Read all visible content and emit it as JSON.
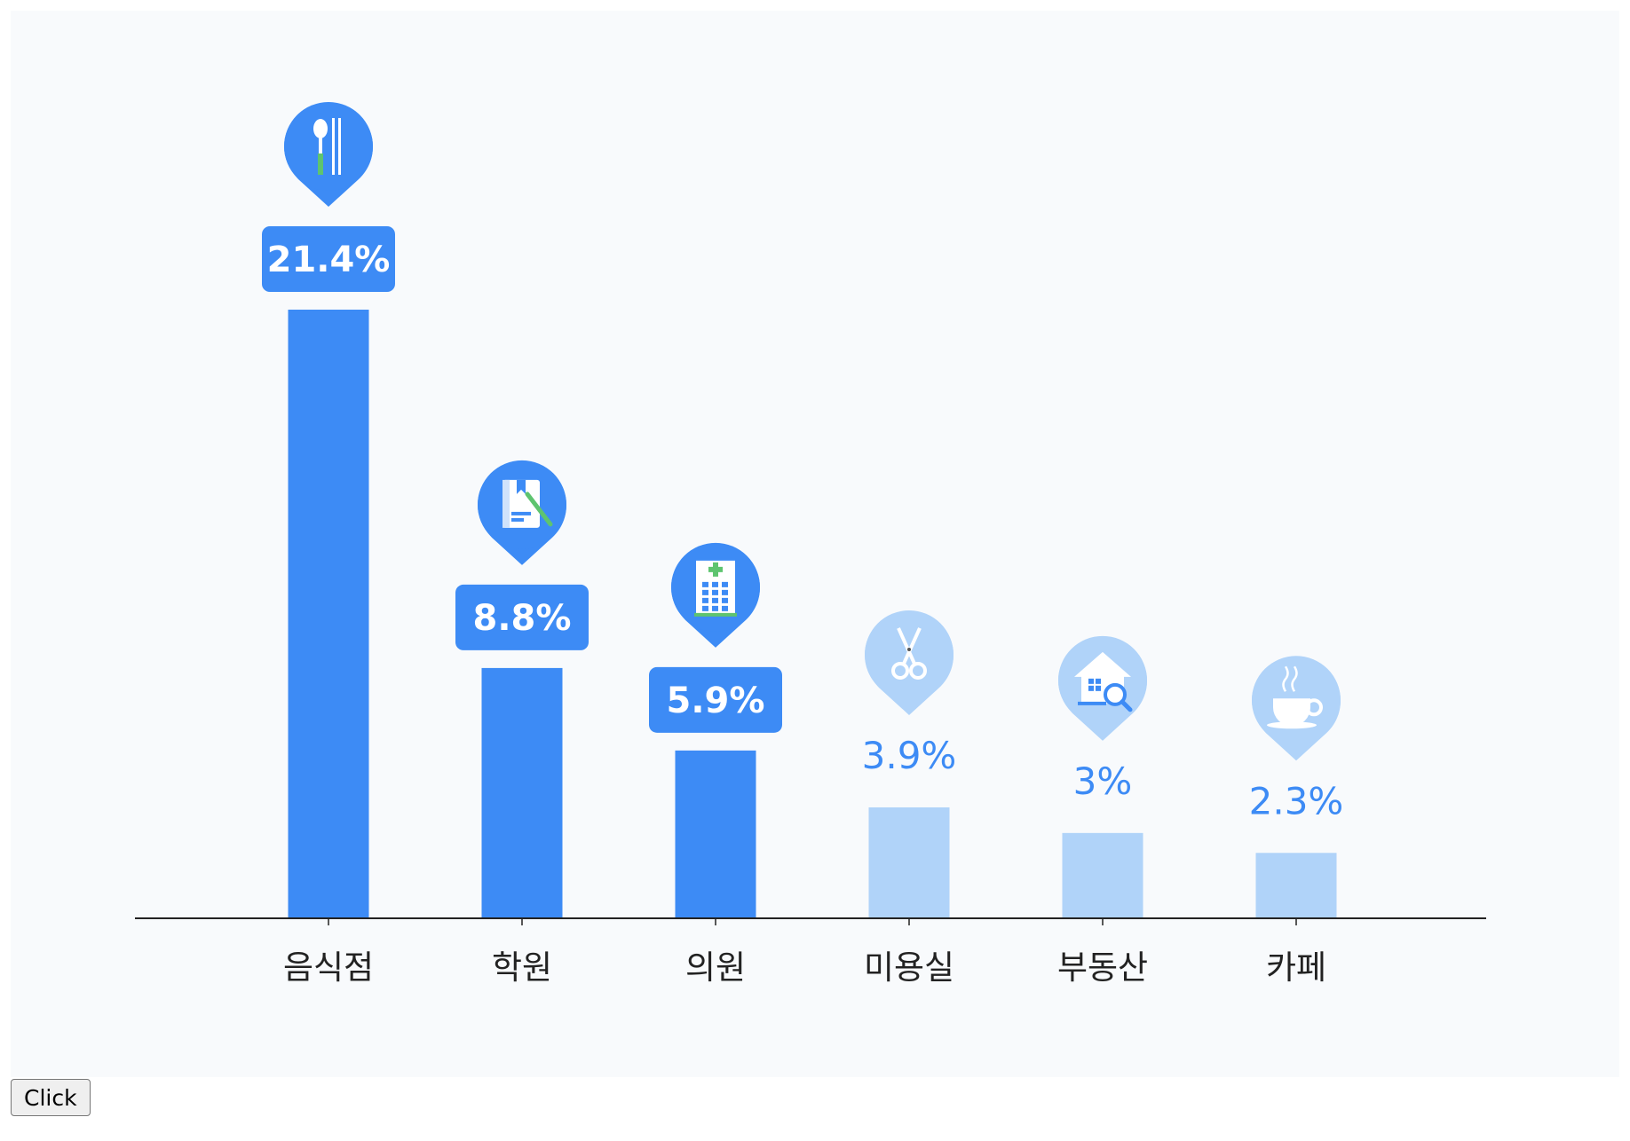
{
  "chart_data": {
    "type": "bar",
    "categories": [
      "음식점",
      "학원",
      "의원",
      "미용실",
      "부동산",
      "카페"
    ],
    "values": [
      21.4,
      8.8,
      5.9,
      3.9,
      3,
      2.3
    ],
    "value_labels": [
      "21.4%",
      "8.8%",
      "5.9%",
      "3.9%",
      "3%",
      "2.3%"
    ],
    "icons": [
      "restaurant-icon",
      "academy-icon",
      "clinic-icon",
      "hair-salon-icon",
      "real-estate-icon",
      "cafe-icon"
    ],
    "highlighted": [
      true,
      true,
      true,
      false,
      false,
      false
    ],
    "title": "",
    "xlabel": "",
    "ylabel": "",
    "ylim": [
      0,
      21.4
    ],
    "grid": false,
    "colors": {
      "primary": "#3d8bf5",
      "secondary": "#b0d3f9",
      "axis": "#222222",
      "background": "#f8fafc",
      "accent_green": "#5ec46f"
    }
  },
  "button": {
    "label": "Click"
  }
}
